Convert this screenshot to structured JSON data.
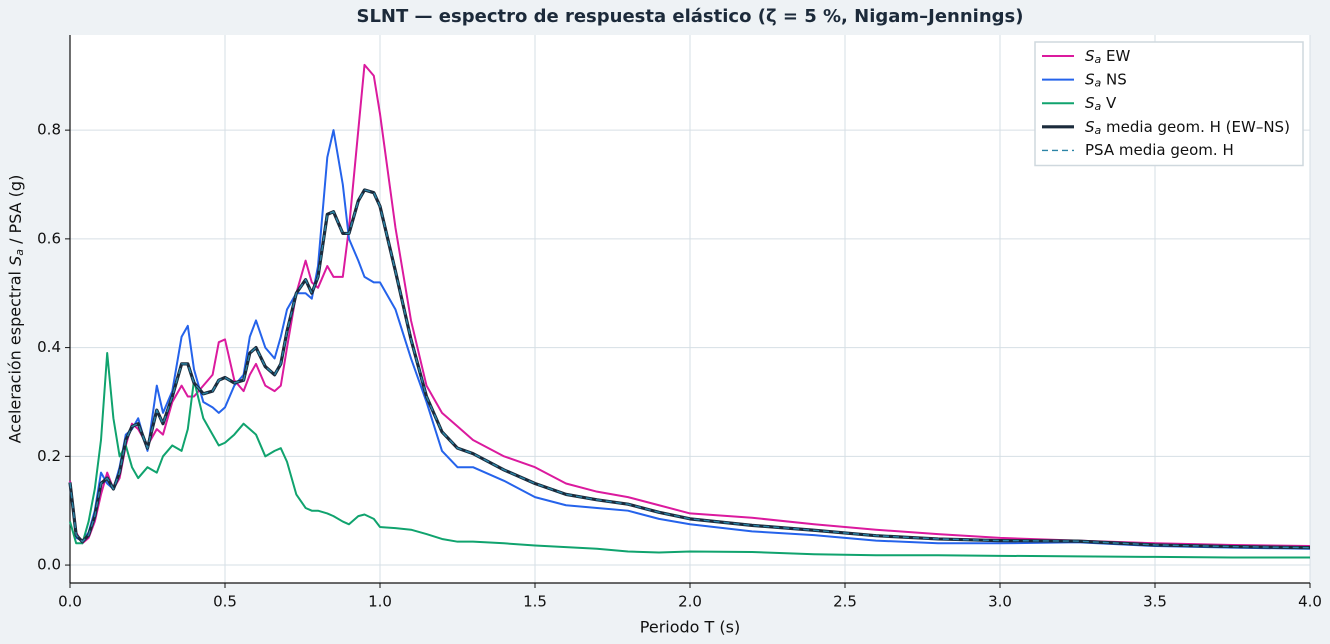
{
  "chart_data": {
    "type": "line",
    "title": "SLNT — espectro de respuesta elástico (ζ = 5 %, Nigam–Jennings)",
    "x_label": "Periodo T (s)",
    "y_label": "Aceleración espectral Sa / PSA (g)",
    "xlim": [
      0,
      4.0
    ],
    "ylim": [
      -0.033,
      0.975
    ],
    "xticks": [
      {
        "value": 0,
        "label": "0.0"
      },
      0.5,
      {
        "value": 1,
        "label": "1.0"
      },
      1.5,
      {
        "value": 2,
        "label": "2.0"
      },
      2.5,
      {
        "value": 3,
        "label": "3.0"
      },
      3.5,
      {
        "value": 4,
        "label": "4.0"
      }
    ],
    "yticks": [
      {
        "value": 0,
        "label": "0.0"
      },
      0.2,
      0.4,
      0.6,
      0.8
    ],
    "grid": true,
    "legend": "upper right",
    "x": [
      0,
      0.02,
      0.04,
      0.06,
      0.08,
      0.1,
      0.12,
      0.14,
      0.16,
      0.18,
      0.2,
      0.22,
      0.25,
      0.28,
      0.3,
      0.33,
      0.36,
      0.38,
      0.4,
      0.43,
      0.46,
      0.48,
      0.5,
      0.53,
      0.56,
      0.58,
      0.6,
      0.63,
      0.66,
      0.68,
      0.7,
      0.73,
      0.76,
      0.78,
      0.8,
      0.83,
      0.85,
      0.88,
      0.9,
      0.93,
      0.95,
      0.98,
      1,
      1.05,
      1.1,
      1.15,
      1.2,
      1.25,
      1.3,
      1.4,
      1.5,
      1.6,
      1.7,
      1.8,
      1.9,
      2,
      2.2,
      2.4,
      2.6,
      2.8,
      3,
      3.25,
      3.5,
      3.75,
      4
    ],
    "series": [
      {
        "name": "Sa EW",
        "color": "#db1a9e",
        "width": 2,
        "dash": false,
        "values": [
          0.155,
          0.06,
          0.04,
          0.05,
          0.08,
          0.13,
          0.17,
          0.14,
          0.16,
          0.22,
          0.26,
          0.25,
          0.22,
          0.25,
          0.24,
          0.3,
          0.33,
          0.31,
          0.31,
          0.33,
          0.35,
          0.41,
          0.415,
          0.34,
          0.32,
          0.35,
          0.37,
          0.33,
          0.32,
          0.33,
          0.4,
          0.5,
          0.56,
          0.52,
          0.51,
          0.55,
          0.53,
          0.53,
          0.62,
          0.8,
          0.92,
          0.9,
          0.83,
          0.62,
          0.45,
          0.33,
          0.28,
          0.255,
          0.23,
          0.2,
          0.18,
          0.15,
          0.135,
          0.125,
          0.11,
          0.095,
          0.087,
          0.075,
          0.065,
          0.057,
          0.05,
          0.045,
          0.04,
          0.037,
          0.035
        ]
      },
      {
        "name": "Sa NS",
        "color": "#2563eb",
        "width": 2,
        "dash": false,
        "values": [
          0.15,
          0.05,
          0.045,
          0.06,
          0.1,
          0.17,
          0.15,
          0.14,
          0.18,
          0.24,
          0.25,
          0.27,
          0.21,
          0.33,
          0.28,
          0.32,
          0.42,
          0.44,
          0.36,
          0.3,
          0.29,
          0.28,
          0.29,
          0.33,
          0.35,
          0.42,
          0.45,
          0.4,
          0.38,
          0.42,
          0.47,
          0.5,
          0.5,
          0.49,
          0.55,
          0.75,
          0.8,
          0.7,
          0.6,
          0.56,
          0.53,
          0.52,
          0.52,
          0.47,
          0.38,
          0.3,
          0.21,
          0.18,
          0.18,
          0.155,
          0.125,
          0.11,
          0.105,
          0.1,
          0.085,
          0.075,
          0.062,
          0.055,
          0.045,
          0.04,
          0.04,
          0.042,
          0.035,
          0.032,
          0.03
        ]
      },
      {
        "name": "Sa V",
        "color": "#10a36e",
        "width": 2,
        "dash": false,
        "values": [
          0.08,
          0.04,
          0.04,
          0.08,
          0.14,
          0.23,
          0.39,
          0.27,
          0.2,
          0.22,
          0.18,
          0.16,
          0.18,
          0.17,
          0.2,
          0.22,
          0.21,
          0.25,
          0.34,
          0.27,
          0.24,
          0.22,
          0.225,
          0.24,
          0.26,
          0.25,
          0.24,
          0.2,
          0.21,
          0.215,
          0.19,
          0.13,
          0.105,
          0.1,
          0.1,
          0.095,
          0.09,
          0.08,
          0.075,
          0.09,
          0.093,
          0.085,
          0.07,
          0.068,
          0.065,
          0.057,
          0.048,
          0.043,
          0.043,
          0.04,
          0.036,
          0.033,
          0.03,
          0.025,
          0.023,
          0.025,
          0.024,
          0.02,
          0.018,
          0.018,
          0.017,
          0.016,
          0.015,
          0.014,
          0.014
        ]
      },
      {
        "name": "Sa media geom. H (EW–NS)",
        "color": "#1b2b3c",
        "width": 3.2,
        "dash": false,
        "values": [
          0.152,
          0.055,
          0.043,
          0.055,
          0.09,
          0.15,
          0.16,
          0.14,
          0.17,
          0.23,
          0.255,
          0.26,
          0.215,
          0.285,
          0.26,
          0.31,
          0.37,
          0.37,
          0.335,
          0.315,
          0.32,
          0.34,
          0.345,
          0.335,
          0.34,
          0.39,
          0.4,
          0.365,
          0.35,
          0.37,
          0.43,
          0.5,
          0.525,
          0.5,
          0.53,
          0.645,
          0.65,
          0.61,
          0.61,
          0.67,
          0.69,
          0.685,
          0.66,
          0.54,
          0.415,
          0.31,
          0.245,
          0.215,
          0.205,
          0.175,
          0.15,
          0.13,
          0.12,
          0.112,
          0.097,
          0.085,
          0.073,
          0.064,
          0.054,
          0.048,
          0.045,
          0.044,
          0.037,
          0.034,
          0.032
        ]
      },
      {
        "name": "PSA media geom. H",
        "color": "#2b84a6",
        "width": 1.4,
        "dash": true,
        "values": [
          0.152,
          0.055,
          0.043,
          0.055,
          0.09,
          0.15,
          0.16,
          0.14,
          0.17,
          0.23,
          0.255,
          0.26,
          0.215,
          0.285,
          0.26,
          0.31,
          0.37,
          0.37,
          0.335,
          0.315,
          0.32,
          0.34,
          0.345,
          0.335,
          0.34,
          0.39,
          0.4,
          0.365,
          0.35,
          0.37,
          0.43,
          0.5,
          0.525,
          0.5,
          0.53,
          0.645,
          0.65,
          0.61,
          0.61,
          0.67,
          0.69,
          0.685,
          0.66,
          0.54,
          0.415,
          0.31,
          0.245,
          0.215,
          0.205,
          0.175,
          0.15,
          0.13,
          0.12,
          0.112,
          0.097,
          0.085,
          0.073,
          0.064,
          0.054,
          0.048,
          0.045,
          0.044,
          0.037,
          0.034,
          0.032
        ]
      }
    ]
  }
}
